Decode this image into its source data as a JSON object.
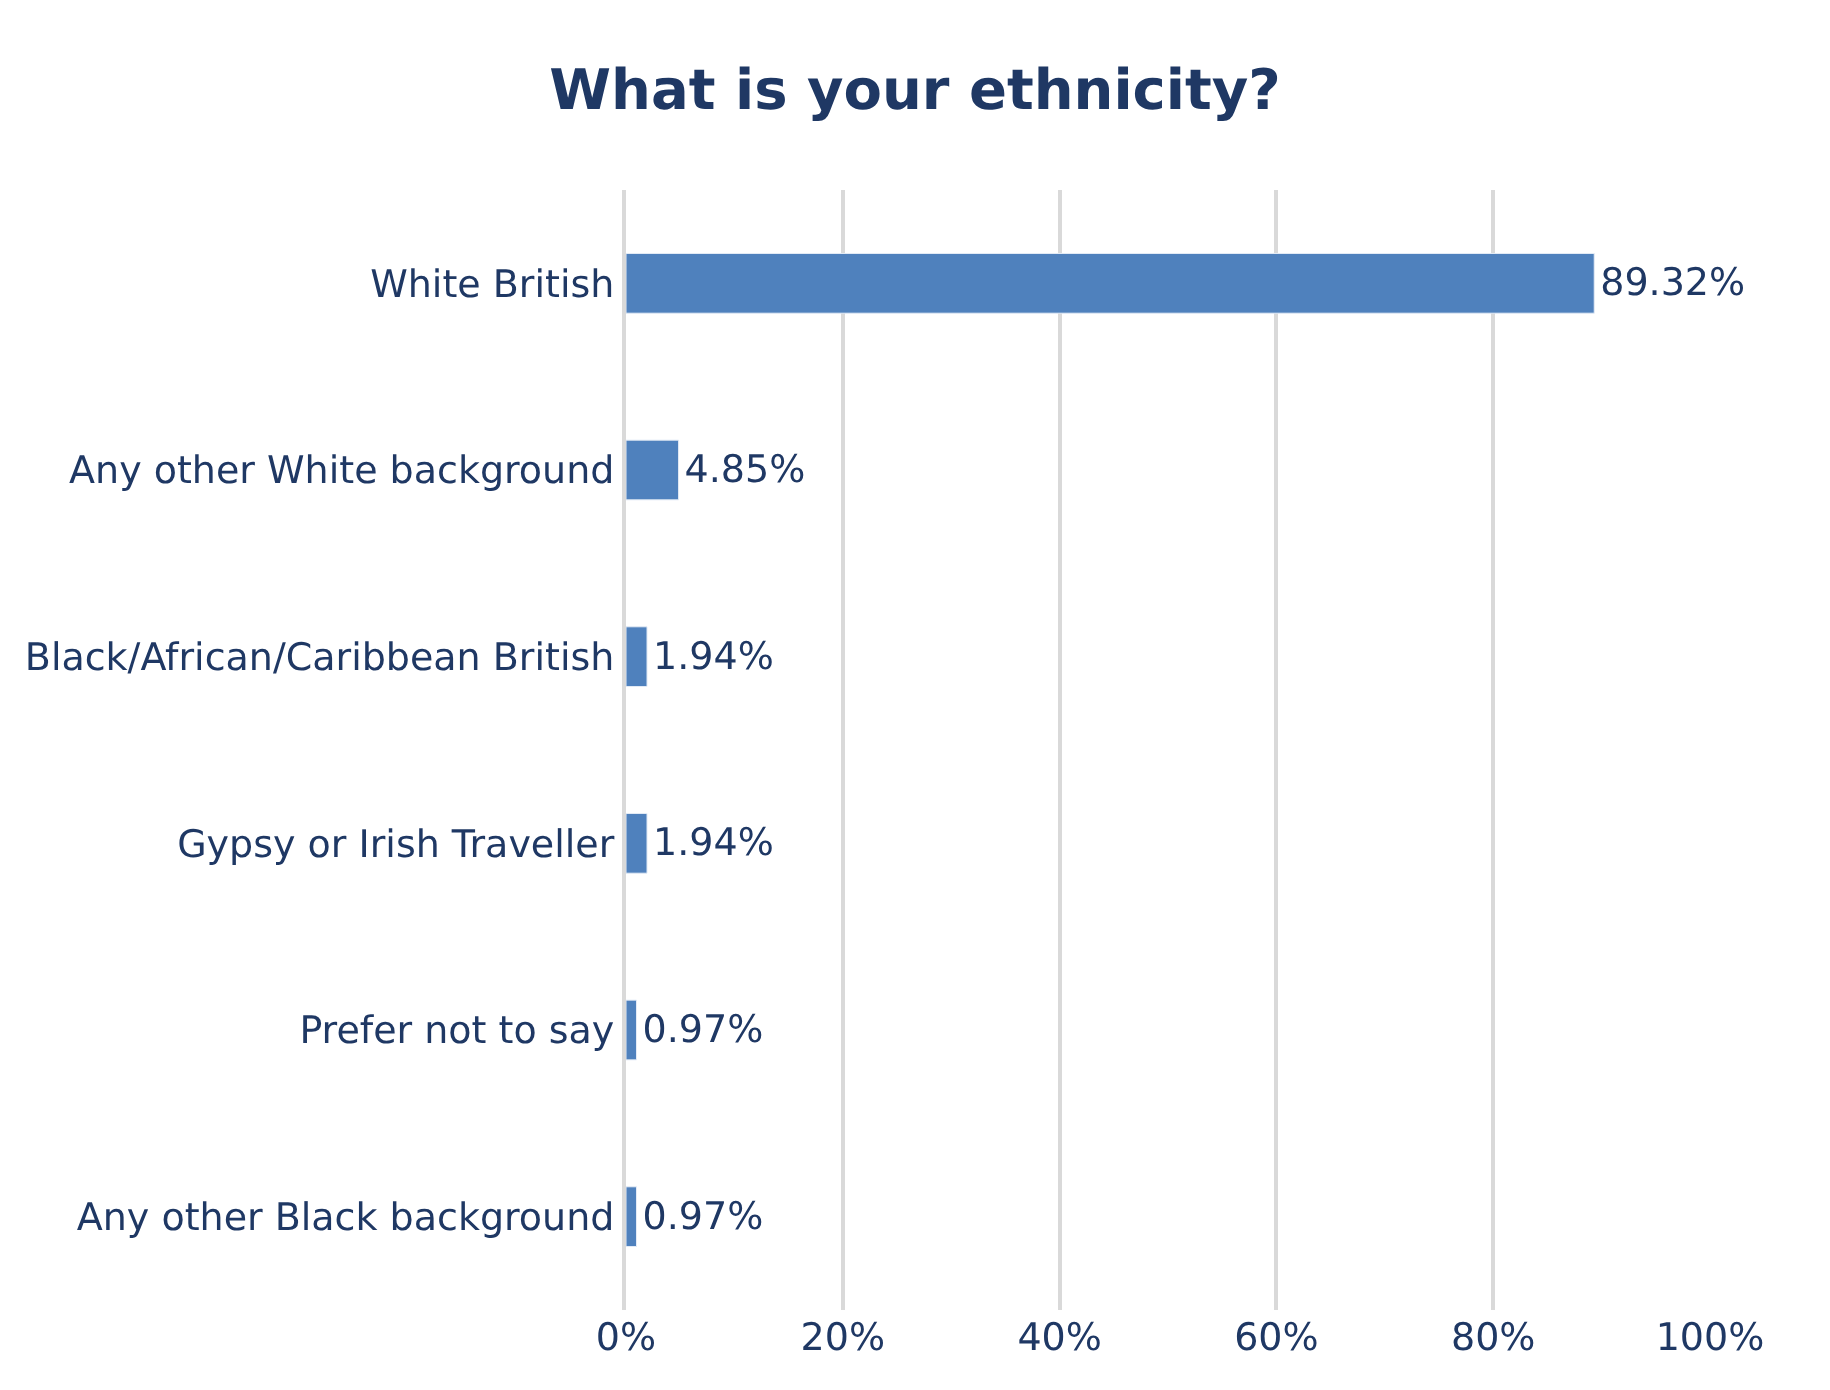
{
  "chart_data": {
    "type": "bar",
    "orientation": "horizontal",
    "title": "What is your ethnicity?",
    "categories": [
      "White British",
      "Any other White background",
      "Black/African/Caribbean British",
      "Gypsy or Irish Traveller",
      "Prefer not to say",
      "Any other Black background"
    ],
    "values": [
      89.32,
      4.85,
      1.94,
      1.94,
      0.97,
      0.97
    ],
    "value_labels": [
      "89.32%",
      "4.85%",
      "1.94%",
      "1.94%",
      "0.97%",
      "0.97%"
    ],
    "color": "#4f81bd",
    "xlim": [
      0,
      100
    ],
    "xticks": [
      {
        "value": 0,
        "label": "0%"
      },
      {
        "value": 20,
        "label": "20%"
      },
      {
        "value": 40,
        "label": "40%"
      },
      {
        "value": 60,
        "label": "60%"
      },
      {
        "value": 80,
        "label": "80%"
      },
      {
        "value": 100,
        "label": "100%"
      }
    ],
    "grid": "x"
  }
}
